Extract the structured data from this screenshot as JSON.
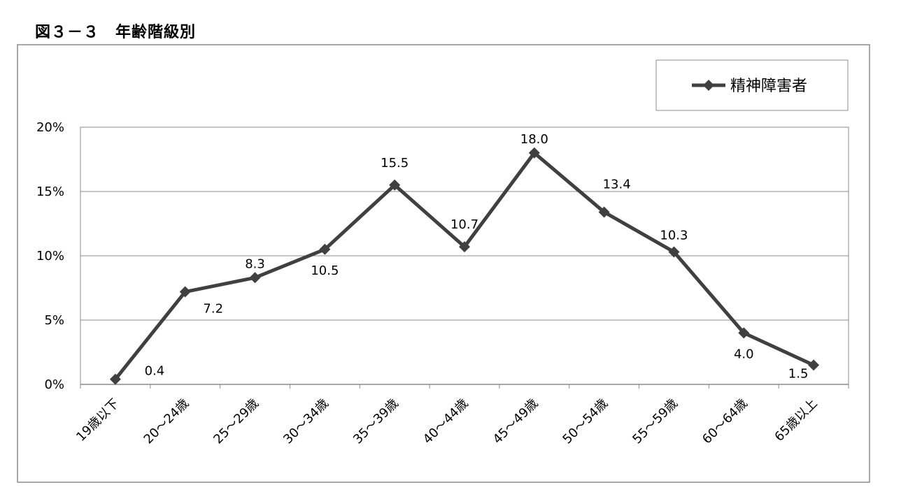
{
  "figure_title": "図３－３　年齢階級別",
  "chart_data": {
    "type": "line",
    "title": "",
    "xlabel": "",
    "ylabel": "",
    "categories": [
      "19歳以下",
      "20～24歳",
      "25～29歳",
      "30～34歳",
      "35～39歳",
      "40～44歳",
      "45～49歳",
      "50～54歳",
      "55～59歳",
      "60～64歳",
      "65歳以上"
    ],
    "series": [
      {
        "name": "精神障害者",
        "values": [
          0.4,
          7.2,
          8.3,
          10.5,
          15.5,
          10.7,
          18.0,
          13.4,
          10.3,
          4.0,
          1.5
        ],
        "data_labels": [
          "0.4",
          "7.2",
          "8.3",
          "10.5",
          "15.5",
          "10.7",
          "18.0",
          "13.4",
          "10.3",
          "4.0",
          "1.5"
        ],
        "color": "#404040",
        "marker": "diamond"
      }
    ],
    "ylim": [
      0,
      20
    ],
    "yticks": [
      0,
      5,
      10,
      15,
      20
    ],
    "ytick_labels": [
      "0%",
      "5%",
      "10%",
      "15%",
      "20%"
    ],
    "grid": true,
    "legend_position": "top-right"
  }
}
